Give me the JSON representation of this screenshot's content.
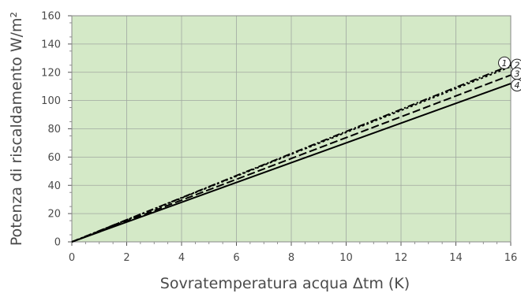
{
  "chart_data": {
    "type": "line",
    "xlabel": "Sovratemperatura acqua Δtm (K)",
    "ylabel": "Potenza di riscaldamento W/m²",
    "xlim": [
      0,
      16
    ],
    "ylim": [
      0,
      160
    ],
    "xticks": [
      "0",
      "2",
      "4",
      "6",
      "8",
      "10",
      "12",
      "14",
      "16"
    ],
    "yticks": [
      "0",
      "20",
      "40",
      "60",
      "80",
      "100",
      "120",
      "140",
      "160"
    ],
    "grid": true,
    "plot_background": "#d4e9c7",
    "grid_color": "#a0a8a0",
    "line_color": "#000000",
    "series": [
      {
        "marker": "1",
        "style": "dash-dot",
        "x": [
          0,
          16
        ],
        "y": [
          0,
          125
        ]
      },
      {
        "marker": "2",
        "style": "dotted",
        "x": [
          0,
          16
        ],
        "y": [
          0,
          124
        ]
      },
      {
        "marker": "3",
        "style": "dashed",
        "x": [
          0,
          16
        ],
        "y": [
          0,
          118
        ]
      },
      {
        "marker": "4",
        "style": "solid",
        "x": [
          0,
          16
        ],
        "y": [
          0,
          112
        ]
      }
    ]
  }
}
